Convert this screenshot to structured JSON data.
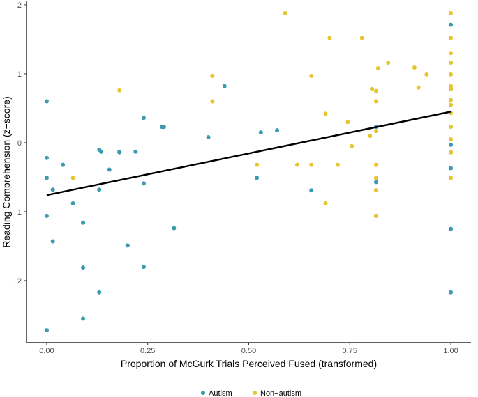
{
  "chart_data": {
    "type": "scatter",
    "xlabel": "Proportion of McGurk Trials Perceived Fused (transformed)",
    "ylabel": "Reading Comprehension (z−score)",
    "xlim": [
      -0.05,
      1.05
    ],
    "ylim": [
      -2.9,
      2.05
    ],
    "x_ticks": [
      {
        "value": 0.0,
        "label": "0.00"
      },
      {
        "value": 0.25,
        "label": "0.25"
      },
      {
        "value": 0.5,
        "label": "0.50"
      },
      {
        "value": 0.75,
        "label": "0.75"
      },
      {
        "value": 1.0,
        "label": "1.00"
      }
    ],
    "y_ticks": [
      {
        "value": -2,
        "label": "−2"
      },
      {
        "value": -1,
        "label": "−1"
      },
      {
        "value": 0,
        "label": "0"
      },
      {
        "value": 1,
        "label": "1"
      },
      {
        "value": 2,
        "label": "2"
      }
    ],
    "grid": false,
    "legend_position": "bottom",
    "series": [
      {
        "name": "Autism",
        "color": "#3a9bb0",
        "points": [
          [
            0.0,
            0.6
          ],
          [
            0.0,
            -0.22
          ],
          [
            0.0,
            -0.51
          ],
          [
            0.0,
            -1.06
          ],
          [
            0.0,
            -2.72
          ],
          [
            0.015,
            -0.68
          ],
          [
            0.015,
            -1.43
          ],
          [
            0.04,
            -0.32
          ],
          [
            0.065,
            -0.88
          ],
          [
            0.09,
            -1.16
          ],
          [
            0.09,
            -1.81
          ],
          [
            0.09,
            -2.55
          ],
          [
            0.13,
            -0.1
          ],
          [
            0.135,
            -0.13
          ],
          [
            0.13,
            -0.68
          ],
          [
            0.13,
            -2.17
          ],
          [
            0.155,
            -0.39
          ],
          [
            0.18,
            -0.13
          ],
          [
            0.18,
            -0.14
          ],
          [
            0.2,
            -1.49
          ],
          [
            0.22,
            -0.13
          ],
          [
            0.24,
            0.36
          ],
          [
            0.24,
            -0.59
          ],
          [
            0.24,
            -1.8
          ],
          [
            0.285,
            0.23
          ],
          [
            0.29,
            0.23
          ],
          [
            0.315,
            -1.24
          ],
          [
            0.4,
            0.08
          ],
          [
            0.44,
            0.82
          ],
          [
            0.52,
            -0.51
          ],
          [
            0.53,
            0.15
          ],
          [
            0.57,
            0.18
          ],
          [
            0.655,
            -0.69
          ],
          [
            0.815,
            0.23
          ],
          [
            0.815,
            -0.57
          ],
          [
            0.815,
            -1.06
          ],
          [
            1.0,
            1.71
          ],
          [
            1.0,
            -0.03
          ],
          [
            1.0,
            -0.14
          ],
          [
            1.0,
            -0.37
          ],
          [
            1.0,
            -1.25
          ],
          [
            1.0,
            -2.17
          ]
        ]
      },
      {
        "name": "Non−autism",
        "color": "#e8c52e",
        "points": [
          [
            0.065,
            -0.51
          ],
          [
            0.18,
            0.76
          ],
          [
            0.41,
            0.97
          ],
          [
            0.41,
            0.6
          ],
          [
            0.52,
            -0.32
          ],
          [
            0.59,
            1.88
          ],
          [
            0.62,
            -0.32
          ],
          [
            0.655,
            0.97
          ],
          [
            0.655,
            -0.32
          ],
          [
            0.69,
            0.42
          ],
          [
            0.69,
            -0.88
          ],
          [
            0.7,
            1.52
          ],
          [
            0.72,
            -0.32
          ],
          [
            0.745,
            0.3
          ],
          [
            0.755,
            -0.05
          ],
          [
            0.78,
            1.52
          ],
          [
            0.8,
            0.1
          ],
          [
            0.805,
            0.78
          ],
          [
            0.815,
            0.75
          ],
          [
            0.815,
            0.6
          ],
          [
            0.815,
            0.17
          ],
          [
            0.815,
            -0.32
          ],
          [
            0.815,
            -0.51
          ],
          [
            0.815,
            -0.69
          ],
          [
            0.815,
            -1.06
          ],
          [
            0.82,
            1.08
          ],
          [
            0.845,
            1.16
          ],
          [
            0.91,
            1.09
          ],
          [
            0.92,
            0.8
          ],
          [
            0.94,
            0.99
          ],
          [
            1.0,
            1.88
          ],
          [
            1.0,
            1.52
          ],
          [
            1.0,
            1.3
          ],
          [
            1.0,
            1.16
          ],
          [
            1.0,
            0.99
          ],
          [
            1.0,
            0.82
          ],
          [
            1.0,
            0.78
          ],
          [
            1.0,
            0.62
          ],
          [
            1.0,
            0.55
          ],
          [
            1.0,
            0.43
          ],
          [
            1.0,
            0.23
          ],
          [
            1.0,
            0.05
          ],
          [
            1.0,
            -0.14
          ],
          [
            1.0,
            -0.51
          ]
        ]
      }
    ],
    "trend_line": {
      "color": "#000000",
      "x": [
        0.0,
        1.0
      ],
      "y": [
        -0.76,
        0.45
      ]
    }
  }
}
